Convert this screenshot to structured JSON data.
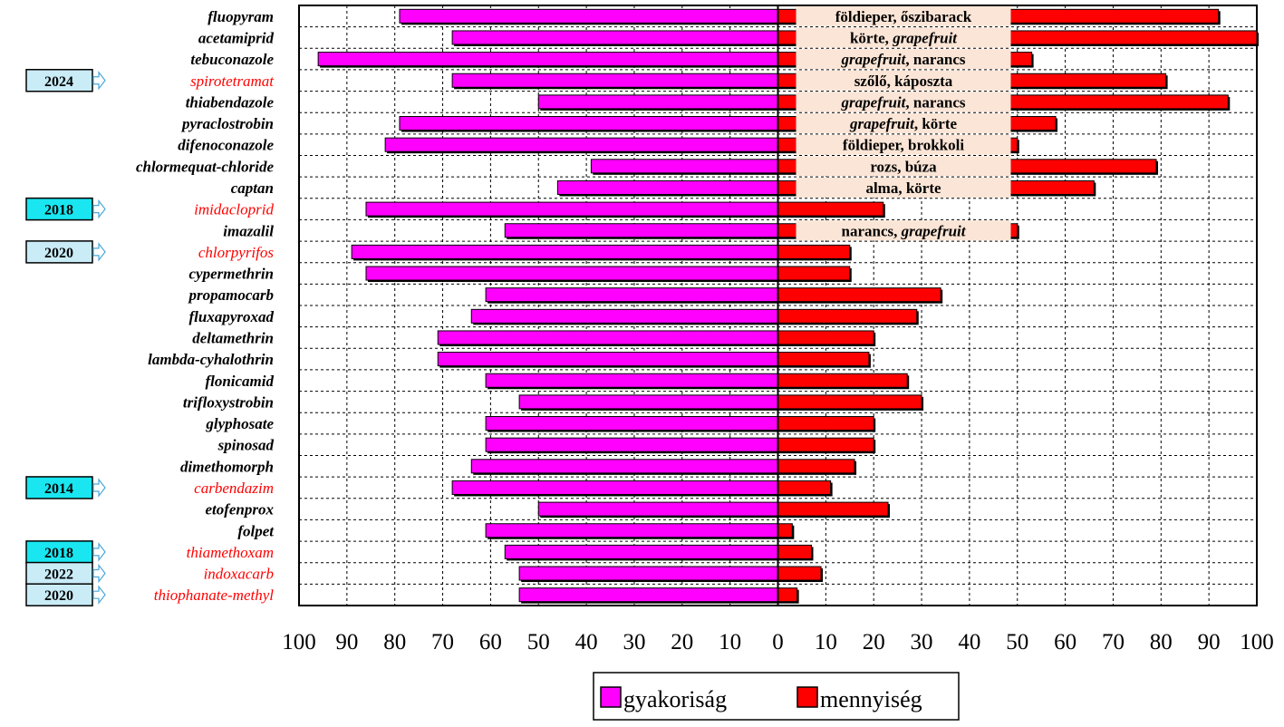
{
  "chart_data": {
    "type": "bar",
    "orientation": "diverging-horizontal",
    "categories": [
      "fluopyram",
      "acetamiprid",
      "tebuconazole",
      "spirotetramat",
      "thiabendazole",
      "pyraclostrobin",
      "difenoconazole",
      "chlormequat-chloride",
      "captan",
      "imidacloprid",
      "imazalil",
      "chlorpyrifos",
      "cypermethrin",
      "propamocarb",
      "fluxapyroxad",
      "deltamethrin",
      "lambda-cyhalothrin",
      "flonicamid",
      "trifloxystrobin",
      "glyphosate",
      "spinosad",
      "dimethomorph",
      "carbendazim",
      "etofenprox",
      "folpet",
      "thiamethoxam",
      "indoxacarb",
      "thiophanate-methyl"
    ],
    "highlighted": [
      false,
      false,
      false,
      true,
      false,
      false,
      false,
      false,
      false,
      true,
      false,
      true,
      false,
      false,
      false,
      false,
      false,
      false,
      false,
      false,
      false,
      false,
      true,
      false,
      false,
      true,
      true,
      true
    ],
    "series": [
      {
        "name": "gyakoriság",
        "color": "#ff00ff",
        "side": "left",
        "values": [
          79,
          68,
          96,
          68,
          50,
          79,
          82,
          39,
          46,
          86,
          57,
          89,
          86,
          61,
          64,
          71,
          71,
          61,
          54,
          61,
          61,
          64,
          68,
          50,
          61,
          57,
          54,
          54
        ]
      },
      {
        "name": "mennyiség",
        "color": "#ff0000",
        "side": "right",
        "values": [
          92,
          100,
          53,
          81,
          94,
          58,
          50,
          79,
          66,
          22,
          50,
          15,
          15,
          34,
          29,
          20,
          19,
          27,
          30,
          20,
          20,
          16,
          11,
          23,
          3,
          7,
          9,
          4
        ]
      }
    ],
    "axis": {
      "left_ticks": [
        "100",
        "90",
        "80",
        "70",
        "60",
        "50",
        "40",
        "30",
        "20",
        "10",
        "0"
      ],
      "right_ticks": [
        "10",
        "20",
        "30",
        "40",
        "50",
        "60",
        "70",
        "80",
        "90",
        "100"
      ],
      "range": [
        0,
        100
      ]
    },
    "crop_labels": [
      {
        "row": 0,
        "parts": [
          {
            "t": "földieper, őszibarack",
            "i": false
          }
        ]
      },
      {
        "row": 1,
        "parts": [
          {
            "t": "körte, ",
            "i": false
          },
          {
            "t": "grapefruit",
            "i": true
          }
        ]
      },
      {
        "row": 2,
        "parts": [
          {
            "t": "grapefruit",
            "i": true
          },
          {
            "t": ", narancs",
            "i": false
          }
        ]
      },
      {
        "row": 3,
        "parts": [
          {
            "t": "szőlő, káposzta",
            "i": false
          }
        ]
      },
      {
        "row": 4,
        "parts": [
          {
            "t": "grapefruit",
            "i": true
          },
          {
            "t": ", narancs",
            "i": false
          }
        ]
      },
      {
        "row": 5,
        "parts": [
          {
            "t": "grapefruit",
            "i": true
          },
          {
            "t": ", körte",
            "i": false
          }
        ]
      },
      {
        "row": 6,
        "parts": [
          {
            "t": "földieper, brokkoli",
            "i": false
          }
        ]
      },
      {
        "row": 7,
        "parts": [
          {
            "t": "rozs, búza",
            "i": false
          }
        ]
      },
      {
        "row": 8,
        "parts": [
          {
            "t": "alma, körte",
            "i": false
          }
        ]
      },
      {
        "row": 10,
        "parts": [
          {
            "t": "narancs, ",
            "i": false
          },
          {
            "t": "grapefruit",
            "i": true
          }
        ]
      }
    ],
    "year_badges": [
      {
        "row": 3,
        "label": "2024",
        "color": "#c9ecf7"
      },
      {
        "row": 9,
        "label": "2018",
        "color": "#19e6f0"
      },
      {
        "row": 11,
        "label": "2020",
        "color": "#c9ecf7"
      },
      {
        "row": 22,
        "label": "2014",
        "color": "#19e6f0"
      },
      {
        "row": 25,
        "label": "2018",
        "color": "#19e6f0"
      },
      {
        "row": 26,
        "label": "2022",
        "color": "#c9ecf7"
      },
      {
        "row": 27,
        "label": "2020",
        "color": "#c9ecf7"
      }
    ],
    "legend": [
      "gyakoriság",
      "mennyiség"
    ]
  }
}
